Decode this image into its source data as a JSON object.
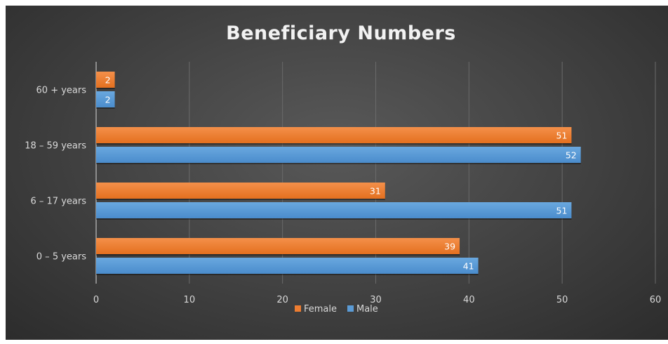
{
  "chart_data": {
    "type": "bar",
    "orientation": "horizontal",
    "title": "Beneficiary Numbers",
    "categories": [
      "0 – 5 years",
      "6 – 17 years",
      "18 – 59 years",
      "60 + years"
    ],
    "series": [
      {
        "name": "Female",
        "color": "#ED7D31",
        "values": [
          39,
          31,
          51,
          2
        ]
      },
      {
        "name": "Male",
        "color": "#5B9BD5",
        "values": [
          41,
          51,
          52,
          2
        ]
      }
    ],
    "xlim": [
      0,
      60
    ],
    "xticks": [
      "0",
      "10",
      "20",
      "30",
      "40",
      "50",
      "60"
    ],
    "grid": "vertical",
    "legend_position": "bottom",
    "data_labels": true
  }
}
